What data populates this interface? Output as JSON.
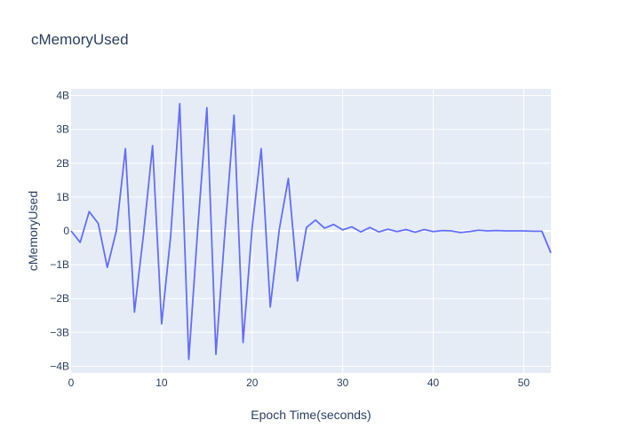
{
  "chart_data": {
    "type": "line",
    "title": "cMemoryUsed",
    "xlabel": "Epoch Time(seconds)",
    "ylabel": "cMemoryUsed",
    "xlim": [
      0,
      53
    ],
    "ylim": [
      -4.2,
      4.2
    ],
    "y_unit_suffix": "B",
    "x_ticks": [
      0,
      10,
      20,
      30,
      40,
      50
    ],
    "x_tick_labels": [
      "0",
      "10",
      "20",
      "30",
      "40",
      "50"
    ],
    "y_ticks": [
      4,
      3,
      2,
      1,
      0,
      -1,
      -2,
      -3,
      -4
    ],
    "y_tick_labels": [
      "4B",
      "3B",
      "2B",
      "1B",
      "0",
      "−1B",
      "−2B",
      "−3B",
      "−4B"
    ],
    "grid": true,
    "colors": {
      "line": "#636efa",
      "plot_bg": "#e5ecf6",
      "grid": "#ffffff"
    },
    "series": [
      {
        "x": [
          0,
          1,
          2,
          3,
          4,
          5,
          6,
          7,
          8,
          9,
          10,
          11,
          12,
          13,
          14,
          15,
          16,
          17,
          18,
          19,
          20,
          21,
          22,
          23,
          24,
          25,
          26,
          27,
          28,
          29,
          30,
          31,
          32,
          33,
          34,
          35,
          36,
          37,
          38,
          39,
          40,
          41,
          42,
          43,
          44,
          45,
          46,
          47,
          48,
          49,
          50,
          51,
          52,
          53
        ],
        "values": [
          0.0,
          -0.34,
          0.57,
          0.22,
          -1.08,
          0.0,
          2.43,
          -2.4,
          -0.1,
          2.52,
          -2.75,
          -0.15,
          3.76,
          -3.8,
          0.1,
          3.64,
          -3.65,
          0.0,
          3.42,
          -3.3,
          0.1,
          2.43,
          -2.25,
          0.05,
          1.55,
          -1.48,
          0.1,
          0.32,
          0.08,
          0.19,
          0.03,
          0.12,
          -0.03,
          0.1,
          -0.03,
          0.05,
          -0.02,
          0.04,
          -0.04,
          0.04,
          -0.02,
          0.01,
          0.0,
          -0.05,
          -0.02,
          0.02,
          0.0,
          0.01,
          0.0,
          0.0,
          0.0,
          -0.01,
          -0.01,
          -0.65
        ]
      }
    ]
  }
}
